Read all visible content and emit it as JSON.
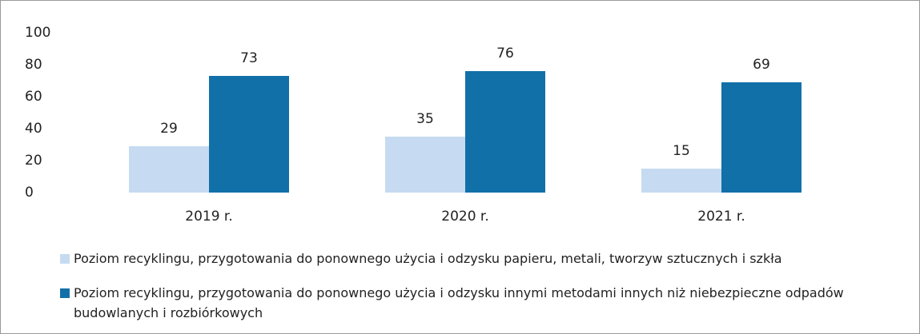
{
  "chart_data": {
    "type": "bar",
    "categories": [
      "2019 r.",
      "2020 r.",
      "2021 r."
    ],
    "series": [
      {
        "name": "Poziom recyklingu, przygotowania do ponownego użycia i odzysku papieru, metali, tworzyw sztucznych i szkła",
        "color": "#c6dbf1",
        "values": [
          29,
          35,
          15
        ]
      },
      {
        "name": "Poziom recyklingu, przygotowania do ponownego użycia i odzysku innymi metodami innych niż niebezpieczne odpadów budowlanych i rozbiórkowych",
        "color": "#1270a8",
        "values": [
          73,
          76,
          69
        ]
      }
    ],
    "ylim": [
      0,
      100
    ],
    "yticks": [
      0,
      20,
      40,
      60,
      80,
      100
    ],
    "grid": false
  }
}
